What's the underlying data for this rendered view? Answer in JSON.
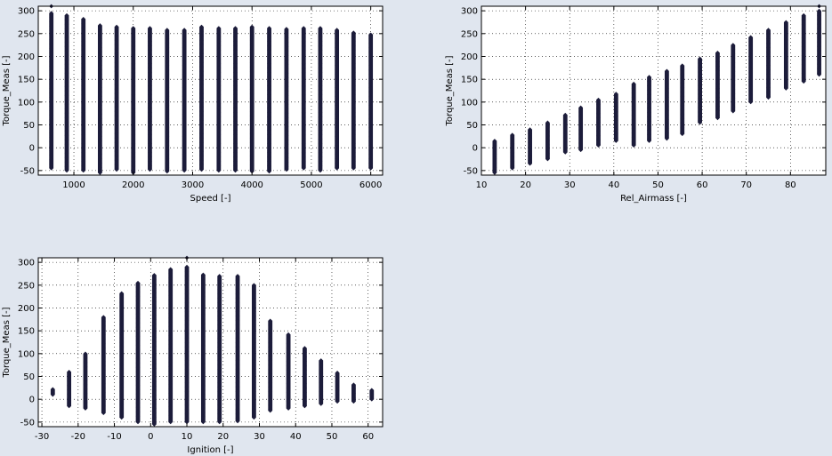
{
  "figure": {
    "background": "#e0e6ef",
    "marker_color": "#1c1c3a"
  },
  "chart_data": [
    {
      "type": "scatter",
      "xlabel": "Speed [-]",
      "ylabel": "Torque_Meas [-]",
      "xlim": [
        400,
        6200
      ],
      "ylim": [
        -60,
        310
      ],
      "xticks": [
        1000,
        2000,
        3000,
        4000,
        5000,
        6000
      ],
      "yticks": [
        -50,
        0,
        50,
        100,
        150,
        200,
        250,
        300
      ],
      "grid": true,
      "column_step": 0,
      "series": [
        {
          "x": 620,
          "y": [
            -45,
            295
          ]
        },
        {
          "x": 880,
          "y": [
            -50,
            290
          ]
        },
        {
          "x": 1160,
          "y": [
            -50,
            282
          ]
        },
        {
          "x": 1440,
          "y": [
            -55,
            268
          ]
        },
        {
          "x": 1720,
          "y": [
            -48,
            265
          ]
        },
        {
          "x": 2000,
          "y": [
            -55,
            262
          ]
        },
        {
          "x": 2280,
          "y": [
            -48,
            262
          ]
        },
        {
          "x": 2570,
          "y": [
            -52,
            258
          ]
        },
        {
          "x": 2860,
          "y": [
            -50,
            258
          ]
        },
        {
          "x": 3150,
          "y": [
            -48,
            265
          ]
        },
        {
          "x": 3440,
          "y": [
            -50,
            262
          ]
        },
        {
          "x": 3720,
          "y": [
            -50,
            262
          ]
        },
        {
          "x": 4000,
          "y": [
            -52,
            265
          ]
        },
        {
          "x": 4290,
          "y": [
            -52,
            262
          ]
        },
        {
          "x": 4580,
          "y": [
            -48,
            260
          ]
        },
        {
          "x": 4870,
          "y": [
            -45,
            262
          ]
        },
        {
          "x": 5150,
          "y": [
            -50,
            262
          ]
        },
        {
          "x": 5430,
          "y": [
            -45,
            258
          ]
        },
        {
          "x": 5710,
          "y": [
            -45,
            252
          ]
        },
        {
          "x": 6000,
          "y": [
            -45,
            248
          ]
        }
      ],
      "outliers": [
        {
          "x": 620,
          "y": 310
        }
      ]
    },
    {
      "type": "scatter",
      "xlabel": "Rel_Airmass [-]",
      "ylabel": "Torque_Meas [-]",
      "xlim": [
        10,
        88
      ],
      "ylim": [
        -60,
        310
      ],
      "xticks": [
        10,
        20,
        30,
        40,
        50,
        60,
        70,
        80
      ],
      "yticks": [
        -50,
        0,
        50,
        100,
        150,
        200,
        250,
        300
      ],
      "grid": true,
      "series": [
        {
          "x": 13,
          "y": [
            -55,
            15
          ]
        },
        {
          "x": 17,
          "y": [
            -45,
            28
          ]
        },
        {
          "x": 21,
          "y": [
            -35,
            40
          ]
        },
        {
          "x": 25,
          "y": [
            -25,
            55
          ]
        },
        {
          "x": 29,
          "y": [
            -10,
            72
          ]
        },
        {
          "x": 32.5,
          "y": [
            -5,
            88
          ]
        },
        {
          "x": 36.5,
          "y": [
            5,
            105
          ]
        },
        {
          "x": 40.5,
          "y": [
            15,
            118
          ]
        },
        {
          "x": 44.5,
          "y": [
            5,
            140
          ]
        },
        {
          "x": 48,
          "y": [
            15,
            155
          ]
        },
        {
          "x": 52,
          "y": [
            20,
            168
          ]
        },
        {
          "x": 55.5,
          "y": [
            30,
            180
          ]
        },
        {
          "x": 59.5,
          "y": [
            55,
            195
          ]
        },
        {
          "x": 63.5,
          "y": [
            65,
            208
          ]
        },
        {
          "x": 67,
          "y": [
            80,
            225
          ]
        },
        {
          "x": 71,
          "y": [
            100,
            242
          ]
        },
        {
          "x": 75,
          "y": [
            110,
            258
          ]
        },
        {
          "x": 79,
          "y": [
            130,
            275
          ]
        },
        {
          "x": 83,
          "y": [
            145,
            290
          ]
        },
        {
          "x": 86.5,
          "y": [
            160,
            300
          ]
        }
      ],
      "outliers": [
        {
          "x": 86.5,
          "y": 310
        }
      ]
    },
    {
      "type": "scatter",
      "xlabel": "Ignition [-]",
      "ylabel": "Torque_Meas [-]",
      "xlim": [
        -31,
        64
      ],
      "ylim": [
        -60,
        310
      ],
      "xticks": [
        -30,
        -20,
        -10,
        0,
        10,
        20,
        30,
        40,
        50,
        60
      ],
      "yticks": [
        -50,
        0,
        50,
        100,
        150,
        200,
        250,
        300
      ],
      "grid": true,
      "series": [
        {
          "x": -27,
          "y": [
            10,
            22
          ]
        },
        {
          "x": -22.5,
          "y": [
            -15,
            60
          ]
        },
        {
          "x": -18,
          "y": [
            -20,
            100
          ]
        },
        {
          "x": -13,
          "y": [
            -30,
            180
          ]
        },
        {
          "x": -8,
          "y": [
            -40,
            232
          ]
        },
        {
          "x": -3.5,
          "y": [
            -50,
            255
          ]
        },
        {
          "x": 1,
          "y": [
            -55,
            272
          ]
        },
        {
          "x": 5.5,
          "y": [
            -50,
            285
          ]
        },
        {
          "x": 10,
          "y": [
            -50,
            290
          ]
        },
        {
          "x": 14.5,
          "y": [
            -50,
            273
          ]
        },
        {
          "x": 19,
          "y": [
            -50,
            270
          ]
        },
        {
          "x": 24,
          "y": [
            -48,
            270
          ]
        },
        {
          "x": 28.5,
          "y": [
            -40,
            250
          ]
        },
        {
          "x": 33,
          "y": [
            -25,
            172
          ]
        },
        {
          "x": 38,
          "y": [
            -20,
            142
          ]
        },
        {
          "x": 42.5,
          "y": [
            -15,
            112
          ]
        },
        {
          "x": 47,
          "y": [
            -10,
            85
          ]
        },
        {
          "x": 51.5,
          "y": [
            -5,
            58
          ]
        },
        {
          "x": 56,
          "y": [
            -5,
            32
          ]
        },
        {
          "x": 61,
          "y": [
            0,
            20
          ]
        }
      ],
      "outliers": [
        {
          "x": 10,
          "y": 310
        }
      ]
    }
  ]
}
